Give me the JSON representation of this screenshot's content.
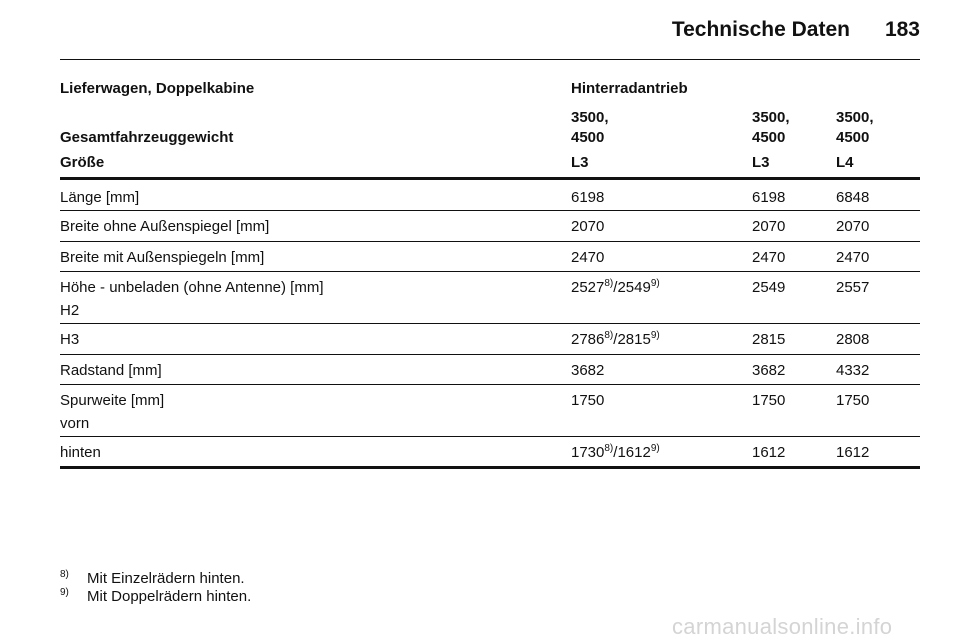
{
  "header": {
    "title": "Technische Daten",
    "page_number": "183"
  },
  "table": {
    "vehicle_type": "Lieferwagen, Doppelkabine",
    "drive": "Hinterradantrieb",
    "weight_label": "Gesamtfahrzeuggewicht",
    "weight_line1": [
      "3500,",
      "3500,",
      "3500,"
    ],
    "weight_line2": [
      "4500",
      "4500",
      "4500"
    ],
    "size_label": "Größe",
    "sizes": [
      "L3",
      "L3",
      "L4"
    ],
    "rows": [
      {
        "label": "Länge [mm]",
        "v1": "6198",
        "v2": "6198",
        "v3": "6848"
      },
      {
        "label": "Breite ohne Außenspiegel [mm]",
        "v1": "2070",
        "v2": "2070",
        "v3": "2070"
      },
      {
        "label": "Breite mit Außenspiegeln [mm]",
        "v1": "2470",
        "v2": "2470",
        "v3": "2470"
      },
      {
        "label": "Höhe - unbeladen (ohne Antenne) [mm]",
        "sublabel": "H2",
        "v1a": "2527",
        "v1a_sup": "8)",
        "v1b": "/2549",
        "v1b_sup": "9)",
        "v2": "2549",
        "v3": "2557"
      },
      {
        "label": "H3",
        "v1a": "2786",
        "v1a_sup": "8)",
        "v1b": "/2815",
        "v1b_sup": "9)",
        "v2": "2815",
        "v3": "2808"
      },
      {
        "label": "Radstand [mm]",
        "v1": "3682",
        "v2": "3682",
        "v3": "4332"
      },
      {
        "label": "Spurweite [mm]",
        "sublabel": "vorn",
        "v1": "1750",
        "v2": "1750",
        "v3": "1750"
      },
      {
        "label": "hinten",
        "v1a": "1730",
        "v1a_sup": "8)",
        "v1b": "/1612",
        "v1b_sup": "9)",
        "v2": "1612",
        "v3": "1612"
      }
    ]
  },
  "footnotes": [
    {
      "mark": "8)",
      "text": "Mit Einzelrädern hinten."
    },
    {
      "mark": "9)",
      "text": "Mit Doppelrädern hinten."
    }
  ],
  "watermark": "carmanualsonline.info"
}
